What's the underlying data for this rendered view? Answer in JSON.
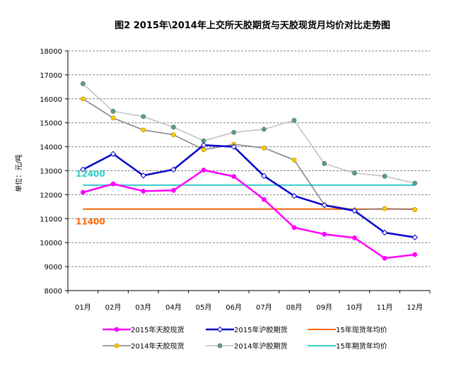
{
  "chart_data": {
    "type": "line",
    "title": "图2 2015年\\2014年上交所天胶期货与天胶现货月均价对比走势图",
    "ylabel": "单位：元/吨",
    "xlabel": "",
    "ylim": [
      8000,
      18000
    ],
    "yticks": [
      8000,
      9000,
      10000,
      11000,
      12000,
      13000,
      14000,
      15000,
      16000,
      17000,
      18000
    ],
    "categories": [
      "01月",
      "02月",
      "03月",
      "04月",
      "05月",
      "06月",
      "07月",
      "08月",
      "09月",
      "10月",
      "11月",
      "12月"
    ],
    "grid": "dashed horizontal",
    "legend_position": "bottom",
    "series": [
      {
        "name": "2015年天胶现货",
        "color": "#ff00ff",
        "marker": "circle",
        "marker_color": "#ff00ff",
        "values": [
          12100,
          12450,
          12150,
          12180,
          13030,
          12760,
          11800,
          10630,
          10350,
          10200,
          9350,
          9500
        ]
      },
      {
        "name": "2015年沪胶期货",
        "color": "#0000cc",
        "marker": "diamond",
        "marker_color": "#ffffff",
        "values": [
          13050,
          13700,
          12800,
          13050,
          14070,
          14000,
          12780,
          11950,
          11560,
          11330,
          10420,
          10220
        ]
      },
      {
        "name": "15年现货年均价",
        "color": "#ff6600",
        "marker": "none",
        "values": [
          11400,
          11400,
          11400,
          11400,
          11400,
          11400,
          11400,
          11400,
          11400,
          11400,
          11400,
          11400
        ]
      },
      {
        "name": "2014年天胶现货",
        "color": "#808080",
        "marker": "circle",
        "marker_color": "#ffcc00",
        "values": [
          16000,
          15200,
          14700,
          14500,
          13880,
          14100,
          13950,
          13450,
          11580,
          11370,
          11420,
          11380
        ]
      },
      {
        "name": "2014年沪胶期货",
        "color": "#c0c0c0",
        "marker": "circle",
        "marker_color": "#5f9f7f",
        "values": [
          16630,
          15480,
          15260,
          14820,
          14250,
          14600,
          14730,
          15100,
          13300,
          12900,
          12770,
          12480
        ]
      },
      {
        "name": "15年期货年均价",
        "color": "#33cccc",
        "marker": "none",
        "values": [
          12400,
          12400,
          12400,
          12400,
          12400,
          12400,
          12400,
          12400,
          12400,
          12400,
          12400,
          12400
        ]
      }
    ],
    "annotations": [
      {
        "text": "12400",
        "value": 12400,
        "color": "#33cccc"
      },
      {
        "text": "11400",
        "value": 11400,
        "color": "#ff6600"
      }
    ]
  }
}
